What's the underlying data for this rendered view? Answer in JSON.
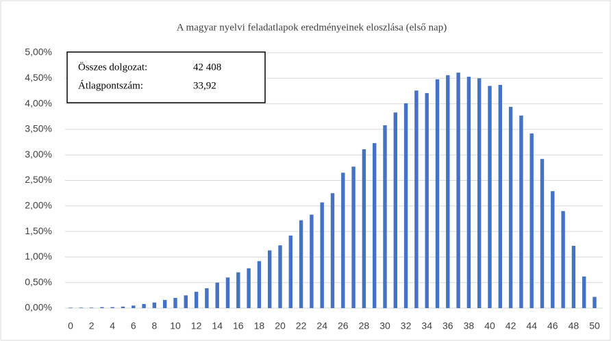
{
  "chart_data": {
    "type": "bar",
    "title": "A magyar nyelvi feladatlapok eredményeinek eloszlása (első nap)",
    "categories": [
      "0",
      null,
      "2",
      null,
      "4",
      null,
      "6",
      null,
      "8",
      null,
      "10",
      null,
      "12",
      null,
      "14",
      null,
      "16",
      null,
      "18",
      null,
      "20",
      null,
      "22",
      null,
      "24",
      null,
      "26",
      null,
      "28",
      null,
      "30",
      null,
      "32",
      null,
      "34",
      null,
      "36",
      null,
      "38",
      null,
      "40",
      null,
      "42",
      null,
      "44",
      null,
      "46",
      null,
      "48",
      null,
      "50"
    ],
    "values": [
      0.01,
      0.01,
      0.01,
      0.02,
      0.02,
      0.03,
      0.05,
      0.08,
      0.11,
      0.16,
      0.2,
      0.25,
      0.32,
      0.39,
      0.5,
      0.6,
      0.7,
      0.78,
      0.92,
      1.13,
      1.23,
      1.42,
      1.72,
      1.83,
      2.07,
      2.25,
      2.65,
      2.77,
      3.11,
      3.23,
      3.58,
      3.83,
      4.01,
      4.26,
      4.21,
      4.48,
      4.56,
      4.61,
      4.53,
      4.5,
      4.35,
      4.37,
      3.94,
      3.77,
      3.42,
      2.92,
      2.29,
      1.9,
      1.22,
      0.62,
      0.22
    ],
    "color": "#4472c4",
    "ylim": [
      0,
      5
    ],
    "yticks": [
      {
        "value": 0,
        "label": "0,00%"
      },
      {
        "value": 0.5,
        "label": "0,50%"
      },
      {
        "value": 1,
        "label": "1,00%"
      },
      {
        "value": 1.5,
        "label": "1,50%"
      },
      {
        "value": 2,
        "label": "2,00%"
      },
      {
        "value": 2.5,
        "label": "2,50%"
      },
      {
        "value": 3,
        "label": "3,00%"
      },
      {
        "value": 3.5,
        "label": "3,50%"
      },
      {
        "value": 4,
        "label": "4,00%"
      },
      {
        "value": 4.5,
        "label": "4,50%"
      },
      {
        "value": 5,
        "label": "5,00%"
      }
    ],
    "grid": true,
    "annotations": [
      [
        "Összes dolgozat:",
        "42 408"
      ],
      [
        "Átlagpontszám:",
        "33,92"
      ]
    ]
  }
}
